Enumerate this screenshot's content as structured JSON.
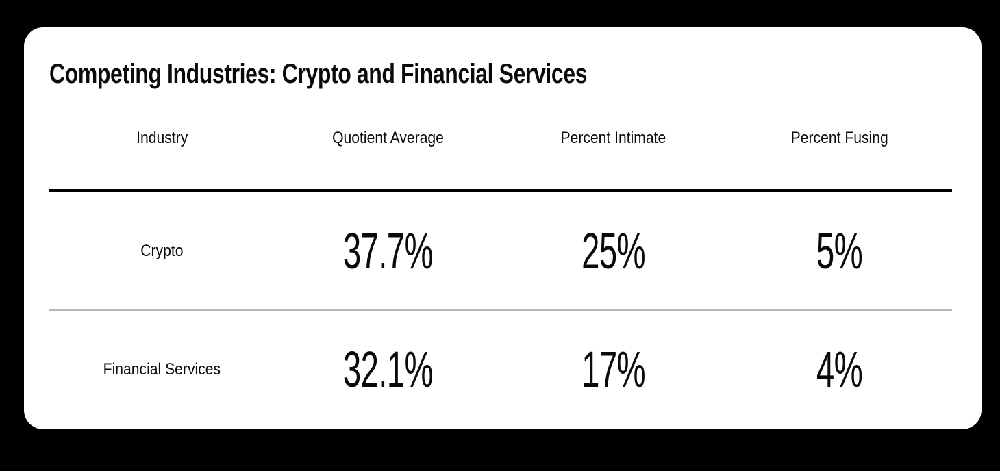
{
  "title": "Competing Industries: Crypto and Financial Services",
  "chart_data": {
    "type": "table",
    "title": "Competing Industries: Crypto and Financial Services",
    "columns": [
      "Industry",
      "Quotient Average",
      "Percent Intimate",
      "Percent Fusing"
    ],
    "rows": [
      {
        "label": "Crypto",
        "values": [
          "37.7%",
          "25%",
          "5%"
        ]
      },
      {
        "label": "Financial Services",
        "values": [
          "32.1%",
          "17%",
          "4%"
        ]
      }
    ],
    "numeric": {
      "categories": [
        "Crypto",
        "Financial Services"
      ],
      "series": [
        {
          "name": "Quotient Average",
          "values": [
            37.7,
            32.1
          ]
        },
        {
          "name": "Percent Intimate",
          "values": [
            25,
            17
          ]
        },
        {
          "name": "Percent Fusing",
          "values": [
            5,
            4
          ]
        }
      ],
      "unit": "%"
    },
    "layout": {
      "header_rule": "thick-black",
      "row_divider": "thin-gray",
      "grid": "off",
      "legend": "none"
    }
  },
  "colors": {
    "page_background": "#000000",
    "card_background": "#ffffff",
    "text": "#0a0a0a",
    "heavy_rule": "#000000",
    "row_divider": "#b9b9b9"
  }
}
